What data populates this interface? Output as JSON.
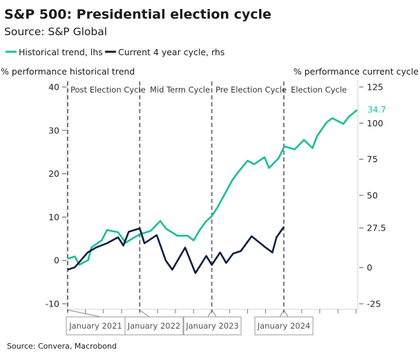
{
  "chart_data": {
    "type": "line",
    "title": "S&P 500: Presidential election cycle",
    "subtitle": "Source: S&P Global",
    "source": "Source: Convera, Macrobond",
    "ylabel_left": "% performance historical trend",
    "ylabel_right": "% performance current cycle",
    "ylim_left": [
      -10,
      40
    ],
    "yticks_left": [
      "40",
      "30",
      "20",
      "10",
      "0",
      "-10"
    ],
    "ylim_right": [
      -25,
      125
    ],
    "yticks_right": [
      "125",
      "100",
      "75",
      "50",
      "27.5",
      "0",
      "-25"
    ],
    "xlim": [
      "2021-01-01",
      "2025-01-10"
    ],
    "x_labels": [
      "January 2021",
      "January 2022",
      "January 2023",
      "January 2024"
    ],
    "cycle_labels": [
      "Post Election Cycle",
      "Mid Term Cycle",
      "Pre Election Cycle",
      "Election Cycle"
    ],
    "end_label": "34.7",
    "grid": false,
    "legend_position": "top-left",
    "series": [
      {
        "name": "Historical trend, lhs",
        "axis": "left",
        "color": "#1ABC9C",
        "x": [
          "2021-01-01",
          "2021-02-06",
          "2021-03-01",
          "2021-04-15",
          "2021-05-01",
          "2021-06-22",
          "2021-07-19",
          "2021-09-13",
          "2021-10-22",
          "2021-12-01",
          "2022-01-01",
          "2022-02-25",
          "2022-04-15",
          "2022-05-15",
          "2022-07-10",
          "2022-09-01",
          "2022-10-01",
          "2022-11-01",
          "2022-12-01",
          "2023-01-01",
          "2023-02-01",
          "2023-04-15",
          "2023-05-12",
          "2023-07-01",
          "2023-08-04",
          "2023-09-25",
          "2023-10-18",
          "2023-12-06",
          "2024-01-04",
          "2024-02-25",
          "2024-04-12",
          "2024-05-25",
          "2024-06-18",
          "2024-08-06",
          "2024-09-03",
          "2024-10-28",
          "2024-11-25",
          "2025-01-06"
        ],
        "y": [
          0.4,
          0.9,
          -1.0,
          0.1,
          3.0,
          4.6,
          7.0,
          6.5,
          4.1,
          5.2,
          6.0,
          6.8,
          9.1,
          7.3,
          5.7,
          5.7,
          4.6,
          7.0,
          8.9,
          10.2,
          12.4,
          18.5,
          20.2,
          23.0,
          22.2,
          23.8,
          21.3,
          23.6,
          26.3,
          25.6,
          27.8,
          25.9,
          28.7,
          31.9,
          32.8,
          31.5,
          33.1,
          34.7
        ]
      },
      {
        "name": "Current 4 year cycle, rhs",
        "axis": "right",
        "color": "#0D1F3C",
        "x": [
          "2021-01-01",
          "2021-02-06",
          "2021-04-12",
          "2021-05-24",
          "2021-07-19",
          "2021-09-13",
          "2021-10-10",
          "2021-11-06",
          "2022-01-01",
          "2022-01-25",
          "2022-03-28",
          "2022-05-13",
          "2022-06-15",
          "2022-08-19",
          "2022-10-10",
          "2022-12-04",
          "2023-01-01",
          "2023-02-12",
          "2023-03-15",
          "2023-04-19",
          "2023-05-28",
          "2023-07-22",
          "2023-10-01",
          "2023-11-04",
          "2023-11-25",
          "2024-01-01"
        ],
        "y": [
          -1.4,
          0.2,
          10.5,
          13.9,
          16.9,
          21.0,
          15.3,
          24.8,
          27.2,
          16.9,
          22.5,
          4.9,
          -1.4,
          13.9,
          -3.8,
          8.1,
          1.9,
          10.5,
          3.3,
          9.7,
          11.5,
          21.7,
          13.9,
          10.5,
          21.0,
          28.2
        ]
      }
    ]
  }
}
